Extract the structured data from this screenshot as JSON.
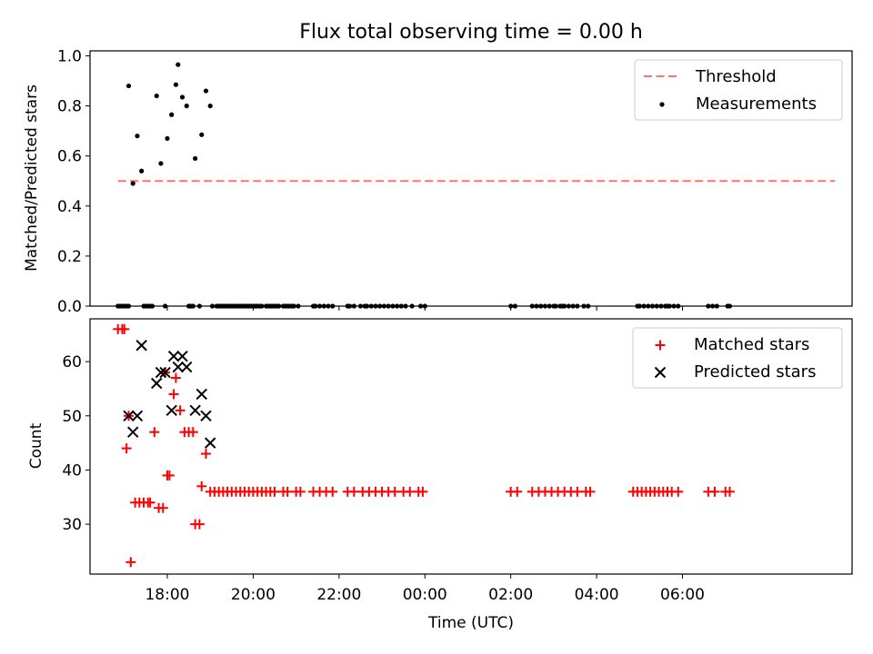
{
  "chart_data": {
    "title": "Flux total observing time = 0.00 h",
    "xlabel": "Time (UTC)",
    "x_unit": "hours since 00:00 of first day (values over 24 are next day)",
    "xlim": [
      16.2,
      33.95
    ],
    "x_ticks": [
      {
        "x": 18,
        "label": "18:00"
      },
      {
        "x": 20,
        "label": "20:00"
      },
      {
        "x": 22,
        "label": "22:00"
      },
      {
        "x": 24,
        "label": "00:00"
      },
      {
        "x": 26,
        "label": "02:00"
      },
      {
        "x": 28,
        "label": "04:00"
      },
      {
        "x": 30,
        "label": "06:00"
      }
    ],
    "panels": [
      {
        "name": "ratio",
        "type": "scatter",
        "ylabel": "Matched/Predicted stars",
        "ylim": [
          0,
          1.02
        ],
        "y_ticks": [
          {
            "y": 0.0,
            "label": "0.0"
          },
          {
            "y": 0.2,
            "label": "0.2"
          },
          {
            "y": 0.4,
            "label": "0.4"
          },
          {
            "y": 0.6,
            "label": "0.6"
          },
          {
            "y": 0.8,
            "label": "0.8"
          },
          {
            "y": 1.0,
            "label": "1.0"
          }
        ],
        "legend_position": "top-right",
        "threshold": {
          "name": "Threshold",
          "color": "#ff7070",
          "value": 0.5,
          "x_range": [
            16.85,
            33.55
          ]
        },
        "measurements": {
          "name": "Measurements",
          "color": "#000000",
          "points": [
            [
              17.1,
              0.88
            ],
            [
              17.2,
              0.49
            ],
            [
              17.3,
              0.68
            ],
            [
              17.4,
              0.54
            ],
            [
              17.75,
              0.84
            ],
            [
              17.85,
              0.57
            ],
            [
              18.0,
              0.67
            ],
            [
              18.1,
              0.765
            ],
            [
              18.2,
              0.885
            ],
            [
              18.25,
              0.965
            ],
            [
              18.35,
              0.835
            ],
            [
              18.45,
              0.8
            ],
            [
              18.65,
              0.59
            ],
            [
              18.8,
              0.685
            ],
            [
              18.9,
              0.86
            ],
            [
              19.0,
              0.8
            ]
          ],
          "zero_points": [
            16.85,
            16.9,
            16.95,
            17.0,
            17.05,
            17.1,
            17.45,
            17.5,
            17.55,
            17.6,
            17.65,
            17.95,
            18.5,
            18.55,
            18.6,
            18.75,
            19.05,
            19.15,
            19.2,
            19.25,
            19.3,
            19.35,
            19.4,
            19.45,
            19.5,
            19.55,
            19.6,
            19.65,
            19.7,
            19.75,
            19.8,
            19.85,
            19.9,
            19.95,
            20.0,
            20.05,
            20.1,
            20.15,
            20.2,
            20.3,
            20.35,
            20.4,
            20.45,
            20.5,
            20.55,
            20.6,
            20.7,
            20.75,
            20.8,
            20.85,
            20.9,
            20.95,
            21.05,
            21.4,
            21.45,
            21.55,
            21.65,
            21.75,
            21.85,
            22.2,
            22.25,
            22.35,
            22.5,
            22.6,
            22.65,
            22.75,
            22.85,
            22.95,
            23.05,
            23.15,
            23.25,
            23.35,
            23.45,
            23.55,
            23.7,
            23.9,
            24.0,
            26.0,
            26.1,
            26.5,
            26.6,
            26.7,
            26.8,
            26.9,
            27.0,
            27.05,
            27.15,
            27.2,
            27.25,
            27.35,
            27.45,
            27.55,
            27.7,
            27.8,
            28.95,
            29.0,
            29.1,
            29.2,
            29.3,
            29.4,
            29.5,
            29.6,
            29.65,
            29.7,
            29.8,
            29.9,
            30.6,
            30.7,
            30.8,
            31.05,
            31.1
          ]
        }
      },
      {
        "name": "counts",
        "type": "scatter",
        "ylabel": "Count",
        "ylim": [
          20.8,
          67.9
        ],
        "y_ticks": [
          {
            "y": 30,
            "label": "30"
          },
          {
            "y": 40,
            "label": "40"
          },
          {
            "y": 50,
            "label": "50"
          },
          {
            "y": 60,
            "label": "60"
          }
        ],
        "legend_position": "top-right",
        "series": [
          {
            "name": "Matched stars",
            "color": "#ff0000",
            "marker": "plus",
            "points": [
              [
                16.85,
                66
              ],
              [
                16.95,
                66
              ],
              [
                17.0,
                66
              ],
              [
                17.05,
                44
              ],
              [
                17.1,
                50
              ],
              [
                17.15,
                23
              ],
              [
                17.25,
                34
              ],
              [
                17.35,
                34
              ],
              [
                17.45,
                34
              ],
              [
                17.55,
                34
              ],
              [
                17.6,
                34
              ],
              [
                17.7,
                47
              ],
              [
                17.8,
                33
              ],
              [
                17.9,
                33
              ],
              [
                17.95,
                58
              ],
              [
                18.0,
                39
              ],
              [
                18.05,
                39
              ],
              [
                18.15,
                54
              ],
              [
                18.2,
                57
              ],
              [
                18.3,
                51
              ],
              [
                18.4,
                47
              ],
              [
                18.5,
                47
              ],
              [
                18.6,
                47
              ],
              [
                18.65,
                30
              ],
              [
                18.75,
                30
              ],
              [
                18.8,
                37
              ],
              [
                18.9,
                43
              ],
              [
                19.0,
                36
              ],
              [
                19.1,
                36
              ],
              [
                19.2,
                36
              ],
              [
                19.3,
                36
              ],
              [
                19.4,
                36
              ],
              [
                19.5,
                36
              ],
              [
                19.6,
                36
              ],
              [
                19.7,
                36
              ],
              [
                19.8,
                36
              ],
              [
                19.9,
                36
              ],
              [
                20.0,
                36
              ],
              [
                20.1,
                36
              ],
              [
                20.2,
                36
              ],
              [
                20.3,
                36
              ],
              [
                20.4,
                36
              ],
              [
                20.5,
                36
              ],
              [
                20.7,
                36
              ],
              [
                20.8,
                36
              ],
              [
                21.0,
                36
              ],
              [
                21.1,
                36
              ],
              [
                21.4,
                36
              ],
              [
                21.55,
                36
              ],
              [
                21.7,
                36
              ],
              [
                21.85,
                36
              ],
              [
                22.2,
                36
              ],
              [
                22.35,
                36
              ],
              [
                22.55,
                36
              ],
              [
                22.7,
                36
              ],
              [
                22.85,
                36
              ],
              [
                23.0,
                36
              ],
              [
                23.15,
                36
              ],
              [
                23.3,
                36
              ],
              [
                23.5,
                36
              ],
              [
                23.65,
                36
              ],
              [
                23.85,
                36
              ],
              [
                23.95,
                36
              ],
              [
                26.0,
                36
              ],
              [
                26.15,
                36
              ],
              [
                26.5,
                36
              ],
              [
                26.65,
                36
              ],
              [
                26.8,
                36
              ],
              [
                26.95,
                36
              ],
              [
                27.1,
                36
              ],
              [
                27.25,
                36
              ],
              [
                27.4,
                36
              ],
              [
                27.55,
                36
              ],
              [
                27.75,
                36
              ],
              [
                27.85,
                36
              ],
              [
                28.85,
                36
              ],
              [
                28.95,
                36
              ],
              [
                29.05,
                36
              ],
              [
                29.15,
                36
              ],
              [
                29.25,
                36
              ],
              [
                29.35,
                36
              ],
              [
                29.45,
                36
              ],
              [
                29.55,
                36
              ],
              [
                29.65,
                36
              ],
              [
                29.75,
                36
              ],
              [
                29.9,
                36
              ],
              [
                30.6,
                36
              ],
              [
                30.75,
                36
              ],
              [
                31.0,
                36
              ],
              [
                31.1,
                36
              ]
            ]
          },
          {
            "name": "Predicted stars",
            "color": "#000000",
            "marker": "x",
            "points": [
              [
                17.1,
                50
              ],
              [
                17.2,
                47
              ],
              [
                17.3,
                50
              ],
              [
                17.4,
                63
              ],
              [
                17.75,
                56
              ],
              [
                17.85,
                58
              ],
              [
                17.95,
                58
              ],
              [
                18.1,
                51
              ],
              [
                18.15,
                61
              ],
              [
                18.25,
                59
              ],
              [
                18.35,
                61
              ],
              [
                18.45,
                59
              ],
              [
                18.65,
                51
              ],
              [
                18.8,
                54
              ],
              [
                18.9,
                50
              ],
              [
                19.0,
                45
              ]
            ]
          }
        ]
      }
    ]
  }
}
